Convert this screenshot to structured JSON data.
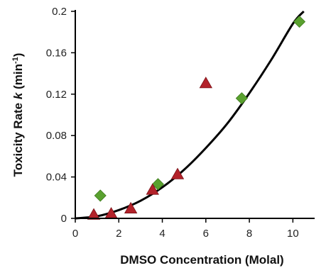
{
  "chart_data": {
    "type": "scatter",
    "xlabel": "DMSO Concentration (Molal)",
    "ylabel": {
      "prefix": "Toxicity Rate ",
      "italic": "k",
      "unit_open": " (min",
      "unit_sup": "-1",
      "unit_close": ")"
    },
    "xlim": [
      0,
      11
    ],
    "ylim": [
      0,
      0.2
    ],
    "x_ticks": [
      0,
      2,
      4,
      6,
      8,
      10
    ],
    "x_tick_labels": [
      "0",
      "2",
      "4",
      "6",
      "8",
      "10"
    ],
    "y_ticks": [
      0,
      0.04,
      0.08,
      0.12,
      0.16,
      0.2
    ],
    "y_tick_labels": [
      "0",
      "0.04",
      "0.08",
      "0.12",
      "0.16",
      "0.2"
    ],
    "grid": false,
    "legend": "none",
    "series": [
      {
        "marker": "diamond",
        "color": "#5aa12f",
        "points": [
          {
            "x": 1.15,
            "y": 0.022
          },
          {
            "x": 3.8,
            "y": 0.033
          },
          {
            "x": 7.65,
            "y": 0.116
          },
          {
            "x": 10.3,
            "y": 0.19
          }
        ]
      },
      {
        "marker": "triangle",
        "color": "#b3222a",
        "points": [
          {
            "x": 0.85,
            "y": 0.003
          },
          {
            "x": 1.65,
            "y": 0.004
          },
          {
            "x": 2.55,
            "y": 0.009
          },
          {
            "x": 3.55,
            "y": 0.027
          },
          {
            "x": 4.7,
            "y": 0.042
          },
          {
            "x": 6.0,
            "y": 0.13
          }
        ]
      }
    ],
    "fit_curve": {
      "color": "#000000",
      "points": [
        {
          "x": 0,
          "y": 0
        },
        {
          "x": 1,
          "y": 0.002
        },
        {
          "x": 2,
          "y": 0.008
        },
        {
          "x": 3,
          "y": 0.017
        },
        {
          "x": 4,
          "y": 0.03
        },
        {
          "x": 5,
          "y": 0.047
        },
        {
          "x": 6,
          "y": 0.068
        },
        {
          "x": 7,
          "y": 0.092
        },
        {
          "x": 8,
          "y": 0.121
        },
        {
          "x": 9,
          "y": 0.153
        },
        {
          "x": 10,
          "y": 0.188
        },
        {
          "x": 10.5,
          "y": 0.2
        }
      ]
    }
  }
}
